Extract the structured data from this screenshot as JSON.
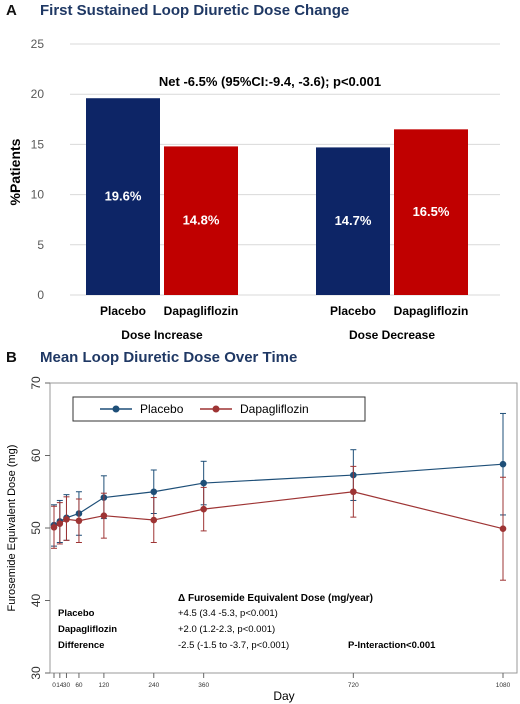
{
  "panel_a": {
    "letter": "A",
    "title": "First Sustained Loop Diuretic Dose Change",
    "annotation": "Net -6.5% (95%CI:-9.4, -3.6); p<0.001"
  },
  "panel_b": {
    "letter": "B",
    "title": "Mean Loop Diuretic Dose Over Time",
    "table_header": "Δ Furosemide Equivalent Dose (mg/year)",
    "table_rows": [
      {
        "label": "Placebo",
        "value": "+4.5 (3.4 -5.3, p<0.001)"
      },
      {
        "label": "Dapagliflozin",
        "value": "+2.0 (1.2-2.3, p<0.001)"
      },
      {
        "label": "Difference",
        "value": "-2.5 (-1.5 to -3.7, p<0.001)"
      }
    ],
    "interaction": "P-Interaction<0.001"
  },
  "chart_data": [
    {
      "type": "bar",
      "title": "First Sustained Loop Diuretic Dose Change",
      "ylabel": "%Patients",
      "ylim": [
        0,
        25
      ],
      "yticks": [
        0,
        5,
        10,
        15,
        20,
        25
      ],
      "grid": true,
      "groups": [
        {
          "label": "Dose Increase",
          "bars": [
            {
              "category": "Placebo",
              "value": 19.6,
              "label": "19.6%",
              "color": "#0d2566"
            },
            {
              "category": "Dapagliflozin",
              "value": 14.8,
              "label": "14.8%",
              "color": "#c00000"
            }
          ]
        },
        {
          "label": "Dose Decrease",
          "bars": [
            {
              "category": "Placebo",
              "value": 14.7,
              "label": "14.7%",
              "color": "#0d2566"
            },
            {
              "category": "Dapagliflozin",
              "value": 16.5,
              "label": "16.5%",
              "color": "#c00000"
            }
          ]
        }
      ]
    },
    {
      "type": "line",
      "title": "Mean Loop Diuretic Dose Over Time",
      "xlabel": "Day",
      "ylabel": "Furosemide Equivalent Dose (mg)",
      "ylim": [
        30,
        70
      ],
      "yticks": [
        30,
        40,
        50,
        60,
        70
      ],
      "xlim": [
        0,
        1080
      ],
      "xticks": [
        0,
        14,
        30,
        60,
        120,
        240,
        360,
        720,
        1080
      ],
      "xtick_labels": [
        "0",
        "14",
        "30",
        "60",
        "120",
        "240",
        "360",
        "720",
        "1080"
      ],
      "legend_position": "top-left",
      "series": [
        {
          "name": "Placebo",
          "color": "#1e4f78",
          "points": [
            {
              "x": 0,
              "y": 50.4,
              "lo": 47.5,
              "hi": 53.2
            },
            {
              "x": 14,
              "y": 50.9,
              "lo": 48.0,
              "hi": 53.8
            },
            {
              "x": 30,
              "y": 51.4,
              "lo": 48.3,
              "hi": 54.6
            },
            {
              "x": 60,
              "y": 52.0,
              "lo": 49.0,
              "hi": 55.0
            },
            {
              "x": 120,
              "y": 54.2,
              "lo": 51.3,
              "hi": 57.2
            },
            {
              "x": 240,
              "y": 55.0,
              "lo": 52.0,
              "hi": 58.0
            },
            {
              "x": 360,
              "y": 56.2,
              "lo": 53.2,
              "hi": 59.2
            },
            {
              "x": 720,
              "y": 57.3,
              "lo": 53.8,
              "hi": 60.8
            },
            {
              "x": 1080,
              "y": 58.8,
              "lo": 51.8,
              "hi": 65.8
            }
          ]
        },
        {
          "name": "Dapagliflozin",
          "color": "#9e3434",
          "points": [
            {
              "x": 0,
              "y": 50.1,
              "lo": 47.2,
              "hi": 53.0
            },
            {
              "x": 14,
              "y": 50.6,
              "lo": 47.8,
              "hi": 53.5
            },
            {
              "x": 30,
              "y": 51.2,
              "lo": 48.3,
              "hi": 54.3
            },
            {
              "x": 60,
              "y": 51.0,
              "lo": 48.0,
              "hi": 54.0
            },
            {
              "x": 120,
              "y": 51.7,
              "lo": 48.6,
              "hi": 54.8
            },
            {
              "x": 240,
              "y": 51.1,
              "lo": 48.0,
              "hi": 54.2
            },
            {
              "x": 360,
              "y": 52.6,
              "lo": 49.6,
              "hi": 55.6
            },
            {
              "x": 720,
              "y": 55.0,
              "lo": 51.5,
              "hi": 58.5
            },
            {
              "x": 1080,
              "y": 49.9,
              "lo": 42.8,
              "hi": 57.0
            }
          ]
        }
      ]
    }
  ]
}
